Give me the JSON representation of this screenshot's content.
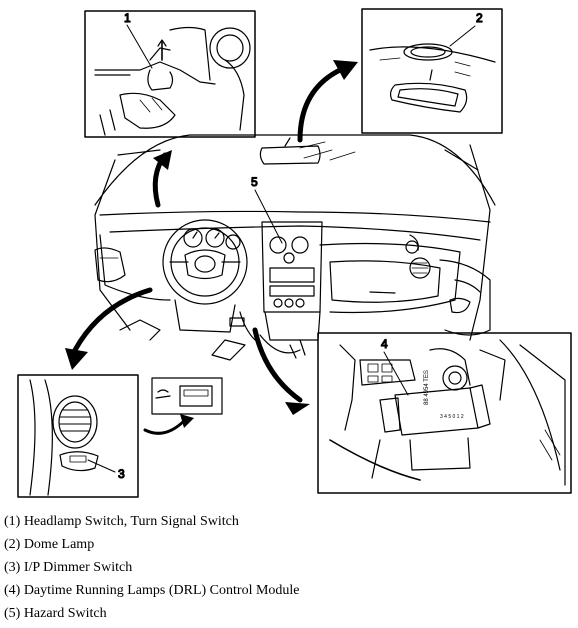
{
  "diagram": {
    "callouts": [
      {
        "id": "callout-1",
        "number": "1"
      },
      {
        "id": "callout-2",
        "number": "2"
      },
      {
        "id": "callout-3",
        "number": "3"
      },
      {
        "id": "callout-4",
        "number": "4"
      },
      {
        "id": "callout-5",
        "number": "5"
      }
    ],
    "module_label_line1": "88 4954 TES",
    "module_label_line2": "3 4 5 0 1 2"
  },
  "legend": [
    "(1) Headlamp Switch, Turn Signal Switch",
    "(2) Dome Lamp",
    "(3) I/P Dimmer Switch",
    "(4) Daytime Running Lamps (DRL) Control Module",
    "(5) Hazard Switch"
  ]
}
